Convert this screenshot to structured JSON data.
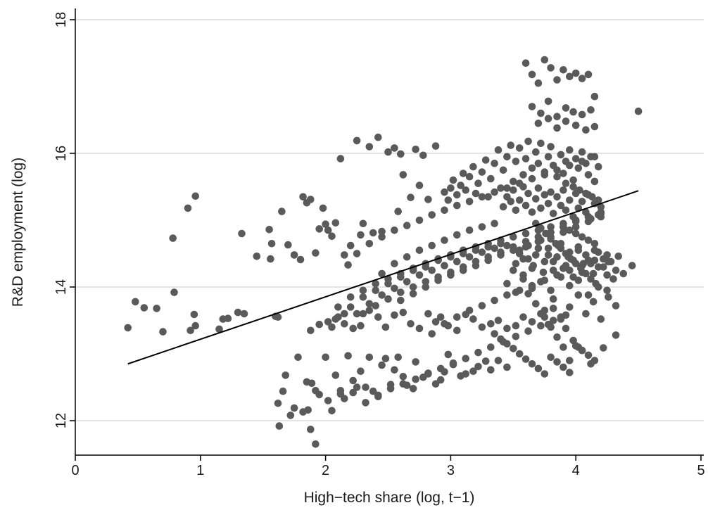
{
  "chart_data": {
    "type": "scatter",
    "title": "",
    "xlabel": "High−tech share (log, t−1)",
    "ylabel": "R&D employment (log)",
    "xlim": [
      0,
      5
    ],
    "ylim": [
      11.5,
      18.1
    ],
    "xticks": [
      {
        "value": 0,
        "label": "0"
      },
      {
        "value": 1,
        "label": "1"
      },
      {
        "value": 2,
        "label": "2"
      },
      {
        "value": 3,
        "label": "3"
      },
      {
        "value": 4,
        "label": "4"
      },
      {
        "value": 5,
        "label": "5"
      }
    ],
    "yticks": [
      {
        "value": 12,
        "label": "12"
      },
      {
        "value": 14,
        "label": "14"
      },
      {
        "value": 16,
        "label": "16"
      },
      {
        "value": 18,
        "label": "18"
      }
    ],
    "grid": "horizontal",
    "legend": "none",
    "colors": {
      "points": "#5a5a5a",
      "fit": "#000000",
      "grid": "#dcdcdc",
      "axis": "#000000"
    },
    "points": {
      "x": [
        0.42,
        0.48,
        0.55,
        0.65,
        0.7,
        0.78,
        0.79,
        0.9,
        0.92,
        0.95,
        0.96,
        0.96,
        1.15,
        1.18,
        1.22,
        1.3,
        1.35,
        1.33,
        1.45,
        1.55,
        1.56,
        1.57,
        1.6,
        1.62,
        1.65,
        1.7,
        1.75,
        1.8,
        1.82,
        1.85,
        1.88,
        1.92,
        1.95,
        1.98,
        2.0,
        2.02,
        2.05,
        2.08,
        2.12,
        2.15,
        2.18,
        2.2,
        2.25,
        2.28,
        2.3,
        2.35,
        2.38,
        2.42,
        2.45,
        2.5,
        2.55,
        2.58,
        2.6,
        2.62,
        2.68,
        2.72,
        2.75,
        2.78,
        2.82,
        2.88,
        1.62,
        1.63,
        1.66,
        1.68,
        1.72,
        1.75,
        1.82,
        1.86,
        1.88,
        1.89,
        1.92,
        1.95,
        2.05,
        2.08,
        2.12,
        2.15,
        2.18,
        2.22,
        2.25,
        2.28,
        2.32,
        2.35,
        2.38,
        2.42,
        2.45,
        2.48,
        2.52,
        2.55,
        2.58,
        2.62,
        2.65,
        2.7,
        2.72,
        2.78,
        2.82,
        2.88,
        2.92,
        2.95,
        2.98,
        3.02,
        3.08,
        3.12,
        3.18,
        3.22,
        3.28,
        3.32,
        3.38,
        3.45,
        1.88,
        1.95,
        2.02,
        2.08,
        2.15,
        2.22,
        2.28,
        2.35,
        2.42,
        2.48,
        2.55,
        2.62,
        2.68,
        2.75,
        2.82,
        2.88,
        2.92,
        2.98,
        3.05,
        3.12,
        3.18,
        3.25,
        3.32,
        3.38,
        3.45,
        3.52,
        3.58,
        3.65,
        3.72,
        3.78,
        1.78,
        1.85,
        1.92,
        2.02,
        2.12,
        2.22,
        2.32,
        2.42,
        2.52,
        2.62,
        2.72,
        2.82,
        2.92,
        3.02,
        3.12,
        3.22,
        3.32,
        3.42,
        3.52,
        3.62,
        3.72,
        3.82,
        3.92,
        4.02,
        4.12,
        4.22,
        4.32,
        2.95,
        2.98,
        3.0,
        3.02,
        3.05,
        3.08,
        3.1,
        3.12,
        3.15,
        3.18,
        3.2,
        3.22,
        3.25,
        3.28,
        3.3,
        3.32,
        3.35,
        3.38,
        3.4,
        3.42,
        3.45,
        3.48,
        3.5,
        3.52,
        3.55,
        3.58,
        3.6,
        3.62,
        3.65,
        3.68,
        3.7,
        3.72,
        3.75,
        3.78,
        3.8,
        3.82,
        3.85,
        3.88,
        3.9,
        3.92,
        3.95,
        3.98,
        4.0,
        4.02,
        4.05,
        4.08,
        4.1,
        4.12,
        4.15,
        4.18,
        3.42,
        3.45,
        3.48,
        3.5,
        3.52,
        3.55,
        3.58,
        3.6,
        3.62,
        3.65,
        3.68,
        3.7,
        3.72,
        3.75,
        3.78,
        3.8,
        3.82,
        3.85,
        3.88,
        3.9,
        3.92,
        3.95,
        3.98,
        4.0,
        4.02,
        4.05,
        4.08,
        4.1,
        4.12,
        4.15,
        4.18,
        4.2,
        3.52,
        3.55,
        3.58,
        3.62,
        3.65,
        3.68,
        3.72,
        3.75,
        3.78,
        3.82,
        3.85,
        3.88,
        3.92,
        3.95,
        3.98,
        4.02,
        4.05,
        4.08,
        4.12,
        4.15,
        4.18,
        4.22,
        4.25,
        4.28,
        4.32,
        4.38,
        4.45,
        3.6,
        3.65,
        3.7,
        3.75,
        3.8,
        3.85,
        3.9,
        3.95,
        4.0,
        4.05,
        4.1,
        4.15,
        3.65,
        3.72,
        3.78,
        3.85,
        3.92,
        3.98,
        4.05,
        4.12,
        3.7,
        3.78,
        3.85,
        3.92,
        4.0,
        4.08,
        4.15,
        4.5,
        3.62,
        3.68,
        3.75,
        3.82,
        3.88,
        3.95,
        4.02,
        4.08,
        4.14,
        4.2,
        4.26,
        4.32,
        3.45,
        3.52,
        3.58,
        3.65,
        3.72,
        3.8,
        3.88,
        3.95,
        4.02,
        4.1,
        4.18,
        4.25,
        3.5,
        3.58,
        3.66,
        3.74,
        3.82,
        3.9,
        3.98,
        4.06,
        4.14,
        4.22,
        4.3,
        3.55,
        3.62,
        3.7,
        3.78,
        3.86,
        3.94,
        4.02,
        4.1,
        4.18,
        4.26,
        4.34,
        2.0,
        2.05,
        2.1,
        2.2,
        2.3,
        2.4,
        2.5,
        2.6,
        2.7,
        2.8,
        2.9,
        3.0,
        3.1,
        3.2,
        3.3,
        3.4,
        2.15,
        2.25,
        2.35,
        2.45,
        2.55,
        2.65,
        2.75,
        2.85,
        2.95,
        3.05,
        3.15,
        3.25,
        3.35,
        3.45,
        2.1,
        2.2,
        2.3,
        2.4,
        2.5,
        2.6,
        2.7,
        2.8,
        2.9,
        3.0,
        3.1,
        3.2,
        3.3,
        3.4,
        3.5,
        3.6,
        3.7,
        3.8,
        3.9,
        4.0,
        4.1,
        4.2,
        2.45,
        2.55,
        2.65,
        2.75,
        2.85,
        2.95,
        3.05,
        3.15,
        3.25,
        3.35,
        2.6,
        2.7,
        2.8,
        2.9,
        3.0,
        3.1,
        3.2,
        3.3,
        3.4,
        3.5,
        3.6,
        3.7,
        3.8,
        3.9,
        4.0,
        4.1,
        4.2,
        2.25,
        2.35,
        2.45,
        2.55,
        2.65,
        2.75,
        2.85,
        2.95,
        3.05,
        3.15,
        3.25,
        3.35,
        3.45,
        3.55,
        3.65,
        3.75,
        3.85,
        3.95,
        4.05,
        4.15,
        2.85,
        2.95,
        3.05,
        3.15,
        3.25,
        3.35,
        3.45,
        3.55,
        3.65,
        3.75,
        3.85,
        3.95,
        4.05,
        4.15,
        4.25,
        2.3,
        2.4,
        2.5,
        2.6,
        2.7,
        2.8,
        2.9,
        3.0,
        3.1,
        3.2,
        3.3,
        3.4,
        3.5,
        3.6,
        3.7,
        3.8,
        3.9,
        4.0,
        4.1,
        4.2,
        3.75,
        3.8,
        3.85,
        3.9,
        3.95,
        3.82,
        3.88,
        3.92,
        3.98,
        4.05,
        3.68,
        3.72,
        3.76,
        3.8,
        3.84,
        3.88,
        3.92,
        3.96,
        4.0,
        4.04,
        4.08,
        4.12,
        4.16,
        3.35,
        3.4,
        3.45,
        3.5,
        3.55,
        3.6,
        3.65,
        3.7,
        3.75,
        3.8,
        3.85,
        3.9,
        3.95,
        4.0,
        4.05,
        4.1,
        4.15,
        3.9,
        3.95,
        4.0,
        4.05,
        4.1,
        4.15,
        3.92,
        3.98,
        4.03,
        4.08,
        4.13,
        4.18
      ],
      "y": [
        13.39,
        13.78,
        13.69,
        13.68,
        13.33,
        14.73,
        13.92,
        15.18,
        13.35,
        13.59,
        13.42,
        15.36,
        13.37,
        13.52,
        13.53,
        13.62,
        13.6,
        14.8,
        14.46,
        14.86,
        14.42,
        14.65,
        13.56,
        13.55,
        15.13,
        14.63,
        14.48,
        14.41,
        15.35,
        15.26,
        15.31,
        14.51,
        14.87,
        15.18,
        14.94,
        14.85,
        14.76,
        14.96,
        15.92,
        14.48,
        14.33,
        14.62,
        16.19,
        14.78,
        14.95,
        16.1,
        14.81,
        16.24,
        14.83,
        16.02,
        16.08,
        15.13,
        15.99,
        15.68,
        15.34,
        16.06,
        15.52,
        15.97,
        15.31,
        16.11,
        12.26,
        11.92,
        12.44,
        12.68,
        12.08,
        12.19,
        12.13,
        12.16,
        11.87,
        12.56,
        12.45,
        12.39,
        12.15,
        12.68,
        12.4,
        12.33,
        12.97,
        12.42,
        12.5,
        12.74,
        12.27,
        12.95,
        12.44,
        12.36,
        12.83,
        12.93,
        12.54,
        12.76,
        12.95,
        12.66,
        12.53,
        12.48,
        12.88,
        12.65,
        12.71,
        12.55,
        12.61,
        12.73,
        12.99,
        12.84,
        12.67,
        12.7,
        12.74,
        12.81,
        12.89,
        12.76,
        12.9,
        12.8,
        13.35,
        13.44,
        13.48,
        13.52,
        13.6,
        13.38,
        13.42,
        13.65,
        13.55,
        13.4,
        13.58,
        13.62,
        13.45,
        13.38,
        13.6,
        13.48,
        13.55,
        13.42,
        13.35,
        13.59,
        13.52,
        13.4,
        13.45,
        13.5,
        13.38,
        13.42,
        13.55,
        13.48,
        13.6,
        13.44,
        12.95,
        12.58,
        11.65,
        12.3,
        12.45,
        12.6,
        12.5,
        12.38,
        12.48,
        12.55,
        12.62,
        12.7,
        12.78,
        12.86,
        12.93,
        13.02,
        13.1,
        13.18,
        13.26,
        13.34,
        13.42,
        13.5,
        13.58,
        13.1,
        12.85,
        13.09,
        13.28,
        15.42,
        15.3,
        15.48,
        15.6,
        15.38,
        15.52,
        15.7,
        15.45,
        15.65,
        15.8,
        15.4,
        15.55,
        15.72,
        15.9,
        15.35,
        15.62,
        15.85,
        16.05,
        15.48,
        15.75,
        15.95,
        16.12,
        15.58,
        15.88,
        16.08,
        15.68,
        15.92,
        16.18,
        15.78,
        16.02,
        15.85,
        16.15,
        15.72,
        15.95,
        16.1,
        15.82,
        15.65,
        15.98,
        15.7,
        15.88,
        16.05,
        15.6,
        15.92,
        15.78,
        16.02,
        15.85,
        15.68,
        15.95,
        15.58,
        15.8,
        15.2,
        15.35,
        15.28,
        15.45,
        15.15,
        15.3,
        15.5,
        15.22,
        15.4,
        15.12,
        15.32,
        15.48,
        15.18,
        15.38,
        15.25,
        15.42,
        15.1,
        15.35,
        15.22,
        15.45,
        15.15,
        15.3,
        15.05,
        15.4,
        15.18,
        15.28,
        15.12,
        15.38,
        15.02,
        15.25,
        15.08,
        15.2,
        14.35,
        14.55,
        14.42,
        14.62,
        14.28,
        14.48,
        14.7,
        14.38,
        14.58,
        14.25,
        14.45,
        14.65,
        14.32,
        14.52,
        14.4,
        14.6,
        14.22,
        14.48,
        14.35,
        14.55,
        14.3,
        14.42,
        14.18,
        14.38,
        14.25,
        14.2,
        14.32,
        17.35,
        17.18,
        17.05,
        17.4,
        17.28,
        17.1,
        17.25,
        17.15,
        17.2,
        17.12,
        17.18,
        16.85,
        16.7,
        16.6,
        16.78,
        16.55,
        16.68,
        16.62,
        16.58,
        16.65,
        16.45,
        16.52,
        16.38,
        16.48,
        16.42,
        16.35,
        16.4,
        16.63,
        13.9,
        13.75,
        13.65,
        13.82,
        13.55,
        13.7,
        13.88,
        13.6,
        13.78,
        13.52,
        13.85,
        13.72,
        14.05,
        13.92,
        14.12,
        13.98,
        14.08,
        13.95,
        14.15,
        14.02,
        14.1,
        13.88,
        14.0,
        13.95,
        14.25,
        14.18,
        14.32,
        14.22,
        14.38,
        14.28,
        14.15,
        14.35,
        14.2,
        14.3,
        14.12,
        14.5,
        14.42,
        14.58,
        14.48,
        14.62,
        14.45,
        14.55,
        14.4,
        14.52,
        14.38,
        14.46,
        12.95,
        13.4,
        13.55,
        13.7,
        13.85,
        13.95,
        14.05,
        14.15,
        14.25,
        14.3,
        14.4,
        14.45,
        14.5,
        14.55,
        14.6,
        14.65,
        13.45,
        13.6,
        13.75,
        13.88,
        13.98,
        14.08,
        14.18,
        14.25,
        14.32,
        14.38,
        14.45,
        14.52,
        14.58,
        14.62,
        13.7,
        13.85,
        13.95,
        14.05,
        14.12,
        14.2,
        14.28,
        14.35,
        14.42,
        14.48,
        14.55,
        14.6,
        14.65,
        14.7,
        14.75,
        14.8,
        14.85,
        14.9,
        14.95,
        15.0,
        15.05,
        15.1,
        14.2,
        14.35,
        14.45,
        14.55,
        14.62,
        14.7,
        14.78,
        14.85,
        14.9,
        14.95,
        13.8,
        13.9,
        14.0,
        14.1,
        14.18,
        14.25,
        14.32,
        14.4,
        14.48,
        14.55,
        14.6,
        14.68,
        14.75,
        14.82,
        14.9,
        14.98,
        15.05,
        14.5,
        14.65,
        14.75,
        14.85,
        14.92,
        15.0,
        15.08,
        15.15,
        15.22,
        15.28,
        15.35,
        15.42,
        15.48,
        15.55,
        15.62,
        15.68,
        15.75,
        15.82,
        15.88,
        15.95,
        13.3,
        13.45,
        13.55,
        13.65,
        13.72,
        13.8,
        13.88,
        13.95,
        14.02,
        14.1,
        14.18,
        14.25,
        14.32,
        14.4,
        14.48,
        13.6,
        13.72,
        13.82,
        13.92,
        14.0,
        14.08,
        14.15,
        14.22,
        14.3,
        14.38,
        14.45,
        14.52,
        14.6,
        14.68,
        14.75,
        14.82,
        14.9,
        14.98,
        15.05,
        15.12,
        13.55,
        13.4,
        13.25,
        13.1,
        12.9,
        13.68,
        13.52,
        13.38,
        13.2,
        13.05,
        14.95,
        14.88,
        14.8,
        14.72,
        14.65,
        14.58,
        14.5,
        14.42,
        14.35,
        14.28,
        14.2,
        14.12,
        14.05,
        13.3,
        13.22,
        13.15,
        13.08,
        13.0,
        12.92,
        12.85,
        12.78,
        12.7,
        12.95,
        12.88,
        12.8,
        12.72,
        13.12,
        13.05,
        12.98,
        12.9,
        14.9,
        14.85,
        14.8,
        14.75,
        14.7,
        14.65,
        15.55,
        15.5,
        15.45,
        15.4,
        15.35,
        15.3
      ]
    },
    "fit": {
      "x": [
        0.42,
        4.5
      ],
      "y": [
        12.85,
        15.44
      ]
    }
  }
}
